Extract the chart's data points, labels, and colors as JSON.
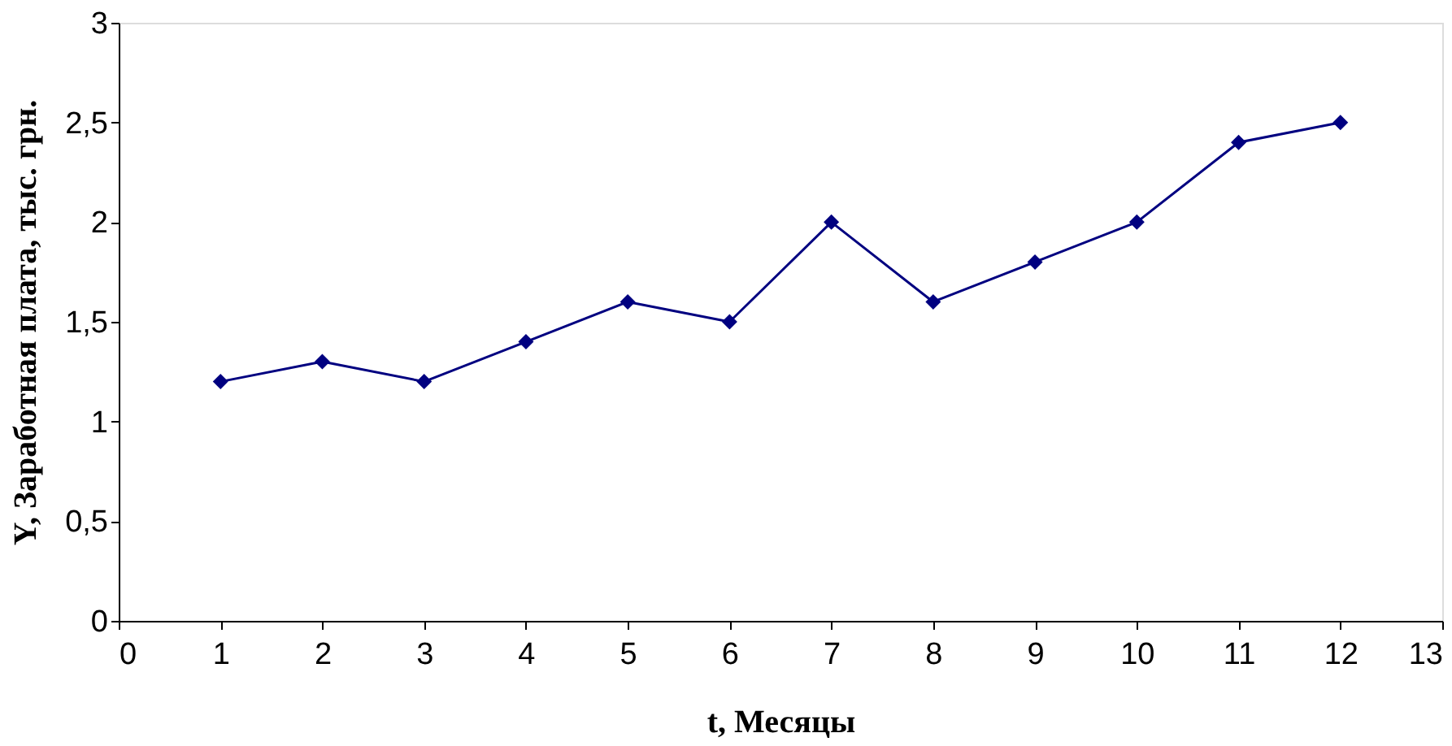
{
  "chart_data": {
    "type": "line",
    "xlabel": "t, Месяцы",
    "ylabel": "Y, Заработная плата, тыс. грн.",
    "x": [
      1,
      2,
      3,
      4,
      5,
      6,
      7,
      8,
      9,
      10,
      11,
      12
    ],
    "series": [
      {
        "color": "#000080",
        "values": [
          1.2,
          1.3,
          1.2,
          1.4,
          1.6,
          1.5,
          2.0,
          1.6,
          1.8,
          2.0,
          2.4,
          2.5
        ]
      }
    ],
    "xlim": [
      0,
      13
    ],
    "xticks": [
      0,
      1,
      2,
      3,
      4,
      5,
      6,
      7,
      8,
      9,
      10,
      11,
      12,
      13
    ],
    "ylim": [
      0,
      3
    ],
    "yticks": [
      0,
      {
        "value": 0.5,
        "label": "0,5"
      },
      1,
      {
        "value": 1.5,
        "label": "1,5"
      },
      2,
      {
        "value": 2.5,
        "label": "2,5"
      },
      3
    ],
    "grid": false,
    "marker": "diamond",
    "line_style": "solid"
  }
}
